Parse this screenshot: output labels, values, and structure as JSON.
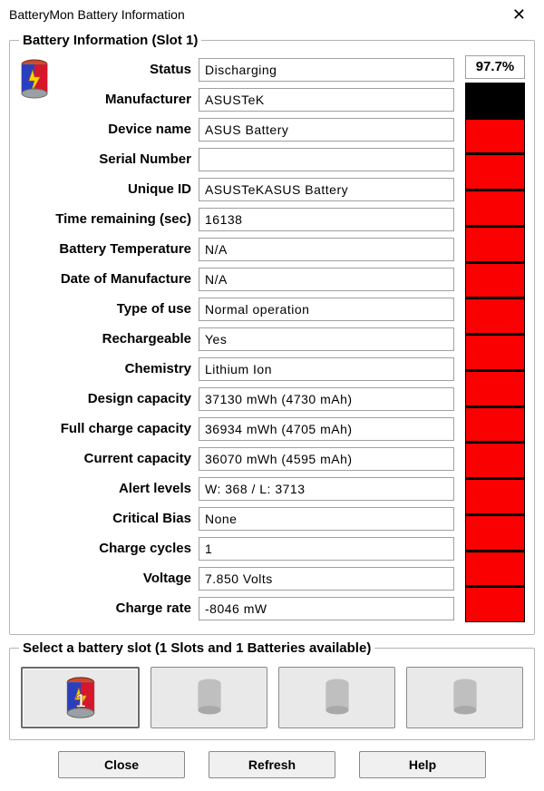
{
  "window": {
    "title": "BatteryMon Battery Information"
  },
  "info": {
    "legend": "Battery Information (Slot 1)",
    "fields": [
      {
        "label": "Status",
        "value": "Discharging"
      },
      {
        "label": "Manufacturer",
        "value": "ASUSTeK"
      },
      {
        "label": "Device name",
        "value": "ASUS Battery"
      },
      {
        "label": "Serial Number",
        "value": ""
      },
      {
        "label": "Unique ID",
        "value": " ASUSTeKASUS Battery"
      },
      {
        "label": "Time remaining (sec)",
        "value": "16138"
      },
      {
        "label": "Battery Temperature",
        "value": "N/A"
      },
      {
        "label": "Date of Manufacture",
        "value": "N/A"
      },
      {
        "label": "Type of use",
        "value": "Normal operation"
      },
      {
        "label": "Rechargeable",
        "value": "Yes"
      },
      {
        "label": "Chemistry",
        "value": "Lithium Ion"
      },
      {
        "label": "Design capacity",
        "value": "37130 mWh (4730 mAh)"
      },
      {
        "label": "Full charge capacity",
        "value": "36934 mWh (4705 mAh)"
      },
      {
        "label": "Current capacity",
        "value": "36070 mWh (4595 mAh)"
      },
      {
        "label": "Alert levels",
        "value": "W: 368 / L: 3713"
      },
      {
        "label": "Critical Bias",
        "value": "None"
      },
      {
        "label": "Charge cycles",
        "value": "1"
      },
      {
        "label": "Voltage",
        "value": "7.850 Volts"
      },
      {
        "label": "Charge rate",
        "value": "-8046 mW"
      }
    ]
  },
  "gauge": {
    "percent_label": "97.7%",
    "segments_total": 15,
    "segments_on": 14,
    "on_color": "#fb0000",
    "off_color": "#000000",
    "border_color": "#000000"
  },
  "slots": {
    "legend": "Select a battery slot (1 Slots and 1 Batteries available)",
    "count": 4,
    "active_index": 0,
    "active_label": "1"
  },
  "buttons": {
    "close": "Close",
    "refresh": "Refresh",
    "help": "Help"
  },
  "colors": {
    "window_bg": "#ffffff",
    "field_border": "#a0a0a0",
    "button_bg": "#f0f0f0"
  }
}
